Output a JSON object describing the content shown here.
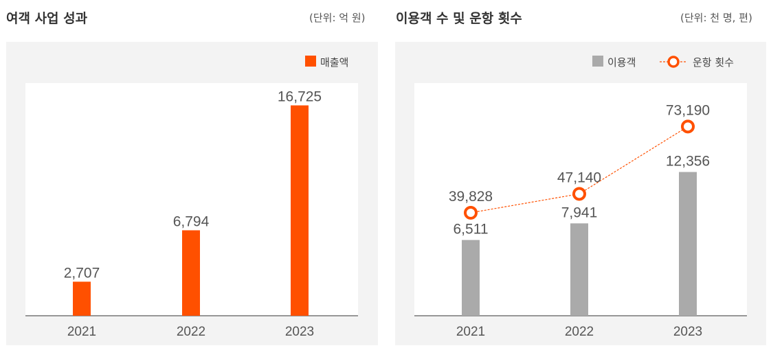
{
  "left": {
    "title": "여객 사업 성과",
    "unit": "(단위: 억 원)"
  },
  "right": {
    "title": "이용객 수 및 운항 횟수",
    "unit": "(단위: 천 명, 편)"
  },
  "colors": {
    "sales": "#ff5000",
    "passengers": "#aaaaaa",
    "flights": "#ff5000",
    "panel_bg": "#f3f3f3",
    "plot_bg": "#ffffff"
  },
  "chart_data": [
    {
      "type": "bar",
      "categories": [
        "2021",
        "2022",
        "2023"
      ],
      "series": [
        {
          "name": "매출액",
          "values": [
            2707,
            6794,
            16725
          ],
          "labels": [
            "2,707",
            "6,794",
            "16,725"
          ]
        }
      ],
      "title": "여객 사업 성과",
      "ylim": [
        0,
        18500
      ],
      "grid": false,
      "legend": "top-right"
    },
    {
      "type": "bar",
      "categories": [
        "2021",
        "2022",
        "2023"
      ],
      "series": [
        {
          "name": "이용객",
          "type": "bar",
          "values": [
            6511,
            7941,
            12356
          ],
          "labels": [
            "6,511",
            "7,941",
            "12,356"
          ]
        },
        {
          "name": "운항 횟수",
          "type": "line",
          "values": [
            39828,
            47140,
            73190
          ],
          "labels": [
            "39,828",
            "47,140",
            "73,190"
          ]
        }
      ],
      "title": "이용객 수 및 운항 횟수",
      "ylim_bar": [
        0,
        20000
      ],
      "ylim_line": [
        0,
        90000
      ],
      "grid": false,
      "legend": "top-right"
    }
  ]
}
